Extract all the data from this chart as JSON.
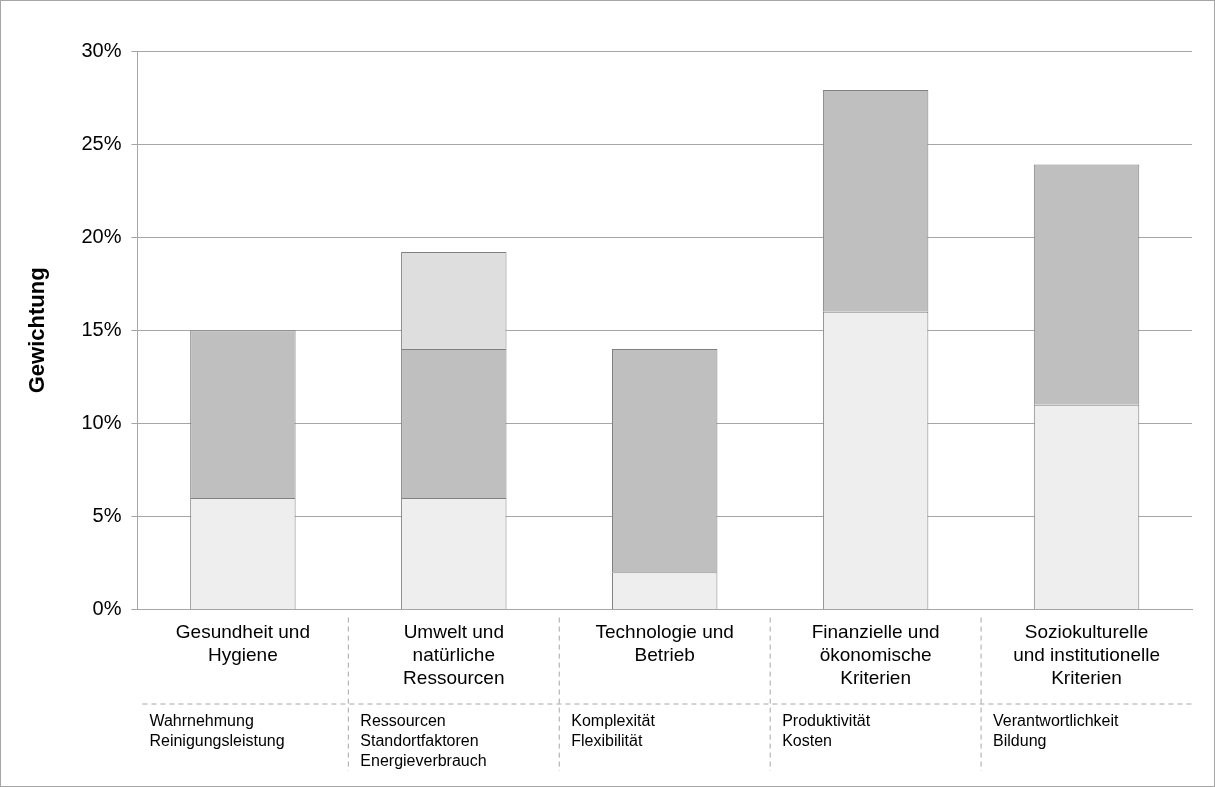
{
  "chart_data": {
    "type": "bar",
    "stacked": true,
    "ylabel": "Gewichtung",
    "categories": [
      "Gesundheit und\nHygiene",
      "Umwelt und\nnatürliche\nRessourcen",
      "Technologie und\nBetrieb",
      "Finanzielle und\nökonomische\nKriterien",
      "Soziokulturelle\nund institutionelle\nKriterien"
    ],
    "series": [
      {
        "color": "#eeeeee",
        "values": [
          6,
          6,
          2,
          16,
          11
        ]
      },
      {
        "color": "#bfbfbf",
        "values": [
          9,
          8,
          12,
          11.9,
          12.9
        ]
      },
      {
        "color": "#dedede",
        "values": [
          null,
          5.2,
          null,
          null,
          null
        ]
      }
    ],
    "ylim": [
      0,
      30
    ],
    "yticks": [
      {
        "value": 0,
        "label": "0%"
      },
      {
        "value": 5,
        "label": "5%"
      },
      {
        "value": 10,
        "label": "10%"
      },
      {
        "value": 15,
        "label": "15%"
      },
      {
        "value": 20,
        "label": "20%"
      },
      {
        "value": 25,
        "label": "25%"
      },
      {
        "value": 30,
        "label": "30%"
      }
    ],
    "grid": "y",
    "annotations": [
      "Wahrnehmung\nReinigungsleistung",
      "Ressourcen\nStandortfaktoren\nEnergieverbrauch",
      "Komplexität\nFlexibilität",
      "Produktivität\nKosten",
      "Verantwortlichkeit\nBildung"
    ]
  }
}
